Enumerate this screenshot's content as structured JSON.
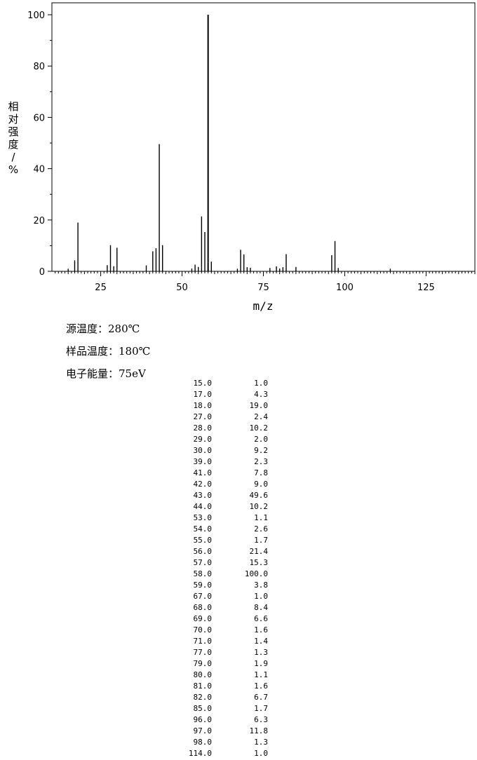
{
  "chart_data": {
    "type": "bar",
    "xlabel": "m/z",
    "ylabel_chars": [
      "相",
      "对",
      "强",
      "度",
      "/",
      "%"
    ],
    "xlim": [
      10,
      140
    ],
    "ylim": [
      0,
      100
    ],
    "x_ticks": [
      25,
      50,
      75,
      100,
      125
    ],
    "y_ticks": [
      0,
      20,
      40,
      60,
      80,
      100
    ],
    "grid": false,
    "peaks": [
      {
        "mz": 15,
        "abundance": 1.0
      },
      {
        "mz": 17,
        "abundance": 4.3
      },
      {
        "mz": 18,
        "abundance": 19.0
      },
      {
        "mz": 27,
        "abundance": 2.4
      },
      {
        "mz": 28,
        "abundance": 10.2
      },
      {
        "mz": 29,
        "abundance": 2.0
      },
      {
        "mz": 30,
        "abundance": 9.2
      },
      {
        "mz": 39,
        "abundance": 2.3
      },
      {
        "mz": 41,
        "abundance": 7.8
      },
      {
        "mz": 42,
        "abundance": 9.0
      },
      {
        "mz": 43,
        "abundance": 49.6
      },
      {
        "mz": 44,
        "abundance": 10.2
      },
      {
        "mz": 53,
        "abundance": 1.1
      },
      {
        "mz": 54,
        "abundance": 2.6
      },
      {
        "mz": 55,
        "abundance": 1.7
      },
      {
        "mz": 56,
        "abundance": 21.4
      },
      {
        "mz": 57,
        "abundance": 15.3
      },
      {
        "mz": 58,
        "abundance": 100.0
      },
      {
        "mz": 59,
        "abundance": 3.8
      },
      {
        "mz": 67,
        "abundance": 1.0
      },
      {
        "mz": 68,
        "abundance": 8.4
      },
      {
        "mz": 69,
        "abundance": 6.6
      },
      {
        "mz": 70,
        "abundance": 1.6
      },
      {
        "mz": 71,
        "abundance": 1.4
      },
      {
        "mz": 77,
        "abundance": 1.3
      },
      {
        "mz": 79,
        "abundance": 1.9
      },
      {
        "mz": 80,
        "abundance": 1.1
      },
      {
        "mz": 81,
        "abundance": 1.6
      },
      {
        "mz": 82,
        "abundance": 6.7
      },
      {
        "mz": 85,
        "abundance": 1.7
      },
      {
        "mz": 96,
        "abundance": 6.3
      },
      {
        "mz": 97,
        "abundance": 11.8
      },
      {
        "mz": 98,
        "abundance": 1.3
      },
      {
        "mz": 114,
        "abundance": 1.0
      }
    ]
  },
  "conditions": {
    "source_temp": {
      "label": "源温度：",
      "value": "280℃"
    },
    "sample_temp": {
      "label": "样品温度：",
      "value": "180℃"
    },
    "electron_energy": {
      "label": "电子能量：",
      "value": "75eV"
    }
  },
  "table": {
    "rows": [
      [
        "15.0",
        "1.0"
      ],
      [
        "17.0",
        "4.3"
      ],
      [
        "18.0",
        "19.0"
      ],
      [
        "27.0",
        "2.4"
      ],
      [
        "28.0",
        "10.2"
      ],
      [
        "29.0",
        "2.0"
      ],
      [
        "30.0",
        "9.2"
      ],
      [
        "39.0",
        "2.3"
      ],
      [
        "41.0",
        "7.8"
      ],
      [
        "42.0",
        "9.0"
      ],
      [
        "43.0",
        "49.6"
      ],
      [
        "44.0",
        "10.2"
      ],
      [
        "53.0",
        "1.1"
      ],
      [
        "54.0",
        "2.6"
      ],
      [
        "55.0",
        "1.7"
      ],
      [
        "56.0",
        "21.4"
      ],
      [
        "57.0",
        "15.3"
      ],
      [
        "58.0",
        "100.0"
      ],
      [
        "59.0",
        "3.8"
      ],
      [
        "67.0",
        "1.0"
      ],
      [
        "68.0",
        "8.4"
      ],
      [
        "69.0",
        "6.6"
      ],
      [
        "70.0",
        "1.6"
      ],
      [
        "71.0",
        "1.4"
      ],
      [
        "77.0",
        "1.3"
      ],
      [
        "79.0",
        "1.9"
      ],
      [
        "80.0",
        "1.1"
      ],
      [
        "81.0",
        "1.6"
      ],
      [
        "82.0",
        "6.7"
      ],
      [
        "85.0",
        "1.7"
      ],
      [
        "96.0",
        "6.3"
      ],
      [
        "97.0",
        "11.8"
      ],
      [
        "98.0",
        "1.3"
      ],
      [
        "114.0",
        "1.0"
      ]
    ]
  }
}
